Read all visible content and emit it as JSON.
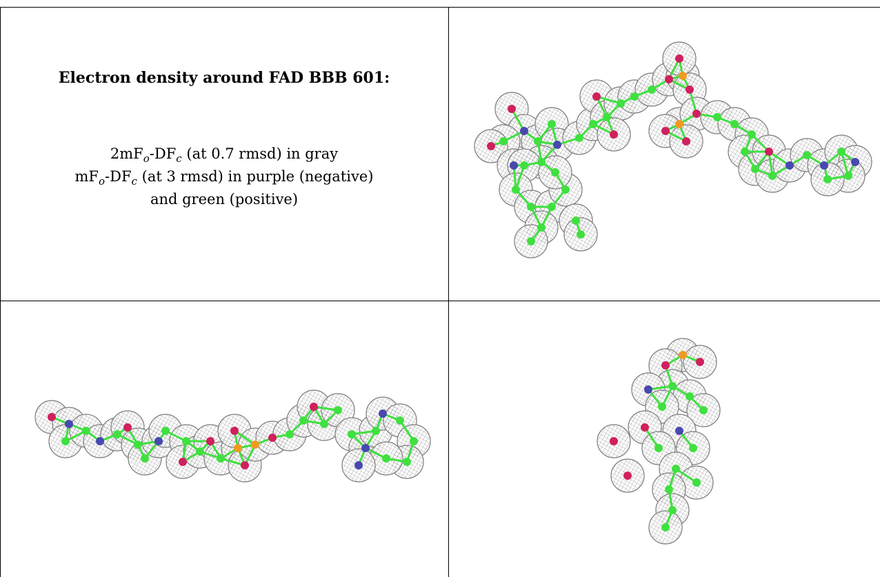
{
  "title": "Electron density around FAD BBB 601:",
  "legend_lines": [
    [
      "2mF",
      "o",
      "-DF",
      "c",
      " (at 0.7 rmsd) in gray"
    ],
    [
      "mF",
      "o",
      "-DF",
      "c",
      " (at 3 rmsd) in purple (negative)"
    ],
    [
      "and green (positive)"
    ]
  ]
}
